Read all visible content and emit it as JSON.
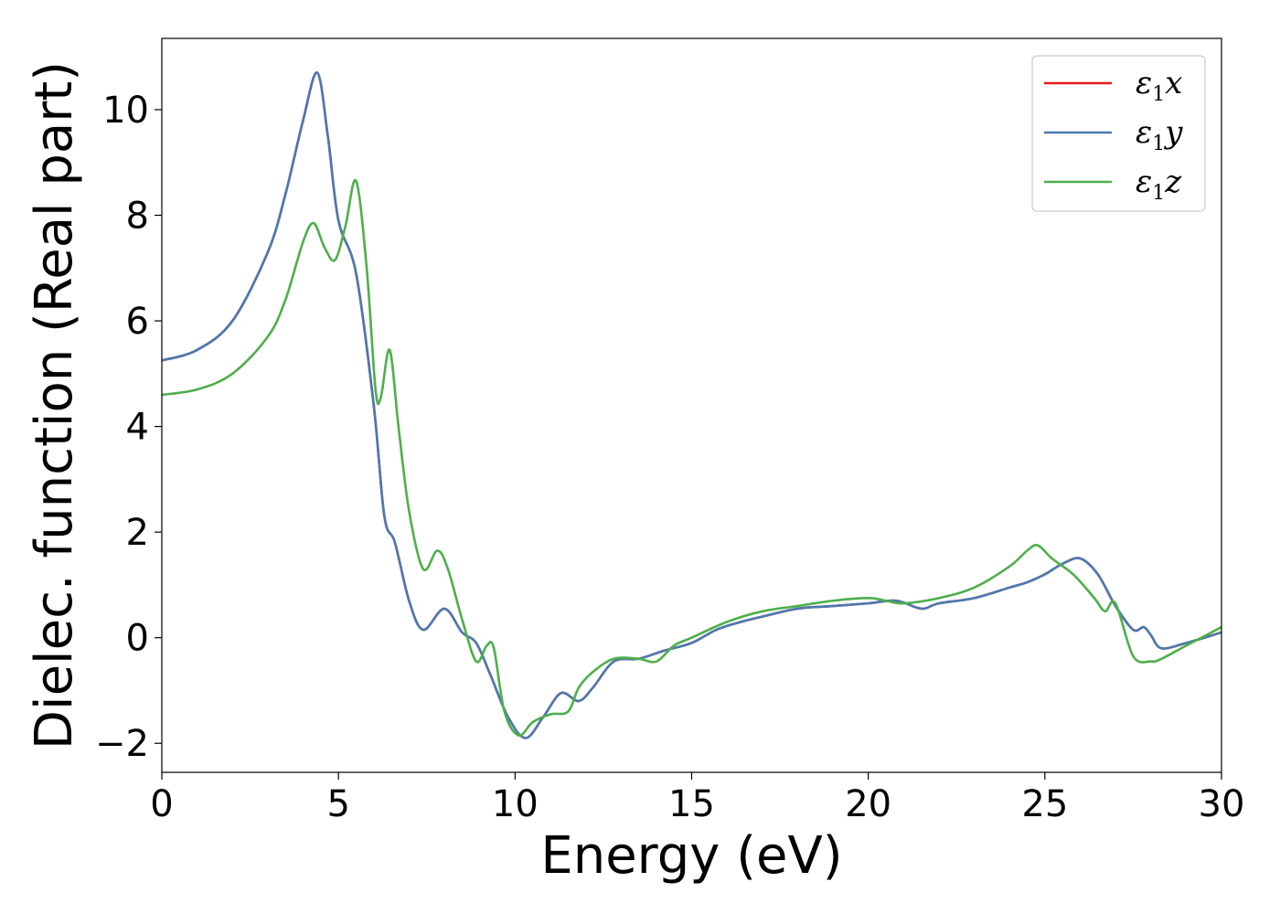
{
  "chart_data": {
    "type": "line",
    "xlabel": "Energy (eV)",
    "ylabel": "Dielec. function (Real part)",
    "xlim": [
      0,
      30
    ],
    "ylim": [
      -2.55,
      11.35
    ],
    "xticks": [
      0,
      5,
      10,
      15,
      20,
      25,
      30
    ],
    "yticks": [
      -2,
      0,
      2,
      4,
      6,
      8,
      10
    ],
    "grid": false,
    "legend_placement": "top-right",
    "series": [
      {
        "name": "ε1x",
        "legend": {
          "base": "ε",
          "sub": "1",
          "suffix": "x"
        },
        "color": "#e41a1c",
        "x": [
          0,
          1,
          2,
          3,
          3.5,
          4,
          4.4,
          4.7,
          5,
          5.5,
          6,
          6.3,
          6.6,
          7,
          7.4,
          8,
          8.5,
          8.9,
          9.3,
          9.8,
          10.3,
          10.8,
          11.3,
          11.8,
          12.2,
          12.8,
          13.5,
          14.2,
          15,
          15.7,
          16.4,
          17,
          18,
          19,
          20,
          20.8,
          21.5,
          22,
          23,
          24,
          24.5,
          25,
          25.5,
          26,
          26.5,
          27,
          27.5,
          27.8,
          28,
          28.3,
          29,
          30
        ],
        "y": [
          5.25,
          5.45,
          6.0,
          7.3,
          8.4,
          9.8,
          10.7,
          9.5,
          7.9,
          6.9,
          4.4,
          2.3,
          1.8,
          0.7,
          0.15,
          0.55,
          0.1,
          -0.1,
          -0.7,
          -1.5,
          -1.9,
          -1.5,
          -1.05,
          -1.2,
          -0.95,
          -0.45,
          -0.4,
          -0.25,
          -0.1,
          0.15,
          0.3,
          0.4,
          0.55,
          0.6,
          0.65,
          0.7,
          0.55,
          0.65,
          0.75,
          0.95,
          1.05,
          1.2,
          1.4,
          1.5,
          1.2,
          0.6,
          0.15,
          0.2,
          0.05,
          -0.2,
          -0.1,
          0.1
        ]
      },
      {
        "name": "ε1y",
        "legend": {
          "base": "ε",
          "sub": "1",
          "suffix": "y"
        },
        "color": "#4a7ab0",
        "x": [
          0,
          1,
          2,
          3,
          3.5,
          4,
          4.4,
          4.7,
          5,
          5.5,
          6,
          6.3,
          6.6,
          7,
          7.4,
          8,
          8.5,
          8.9,
          9.3,
          9.8,
          10.3,
          10.8,
          11.3,
          11.8,
          12.2,
          12.8,
          13.5,
          14.2,
          15,
          15.7,
          16.4,
          17,
          18,
          19,
          20,
          20.8,
          21.5,
          22,
          23,
          24,
          24.5,
          25,
          25.5,
          26,
          26.5,
          27,
          27.5,
          27.8,
          28,
          28.3,
          29,
          30
        ],
        "y": [
          5.25,
          5.45,
          6.0,
          7.3,
          8.4,
          9.8,
          10.7,
          9.5,
          7.9,
          6.9,
          4.4,
          2.3,
          1.8,
          0.7,
          0.15,
          0.55,
          0.1,
          -0.1,
          -0.7,
          -1.5,
          -1.9,
          -1.5,
          -1.05,
          -1.2,
          -0.95,
          -0.45,
          -0.4,
          -0.25,
          -0.1,
          0.15,
          0.3,
          0.4,
          0.55,
          0.6,
          0.65,
          0.7,
          0.55,
          0.65,
          0.75,
          0.95,
          1.05,
          1.2,
          1.4,
          1.5,
          1.2,
          0.6,
          0.15,
          0.2,
          0.05,
          -0.2,
          -0.1,
          0.1
        ]
      },
      {
        "name": "ε1z",
        "legend": {
          "base": "ε",
          "sub": "1",
          "suffix": "z"
        },
        "color": "#4daf4a",
        "x": [
          0,
          1,
          2,
          3,
          3.5,
          4,
          4.3,
          4.6,
          4.9,
          5.2,
          5.5,
          5.8,
          6.05,
          6.2,
          6.45,
          6.7,
          7,
          7.4,
          7.8,
          8.1,
          8.5,
          8.9,
          9.2,
          9.4,
          9.7,
          10.1,
          10.5,
          11,
          11.5,
          11.8,
          12.2,
          12.8,
          13.5,
          14,
          14.5,
          15,
          16,
          17,
          18,
          19,
          20,
          20.5,
          21,
          22,
          23,
          24,
          24.5,
          24.8,
          25.2,
          25.8,
          26.4,
          26.7,
          27,
          27.5,
          28,
          28.3,
          29,
          30
        ],
        "y": [
          4.6,
          4.7,
          5.0,
          5.7,
          6.4,
          7.5,
          7.85,
          7.4,
          7.15,
          7.8,
          8.65,
          7.0,
          4.7,
          4.55,
          5.45,
          4.0,
          2.4,
          1.3,
          1.65,
          1.3,
          0.35,
          -0.45,
          -0.15,
          -0.2,
          -1.4,
          -1.85,
          -1.6,
          -1.45,
          -1.4,
          -0.95,
          -0.65,
          -0.4,
          -0.4,
          -0.45,
          -0.15,
          0.0,
          0.3,
          0.5,
          0.6,
          0.7,
          0.75,
          0.7,
          0.65,
          0.75,
          0.95,
          1.35,
          1.65,
          1.75,
          1.5,
          1.2,
          0.75,
          0.5,
          0.65,
          -0.35,
          -0.45,
          -0.4,
          -0.15,
          0.2
        ]
      }
    ]
  }
}
